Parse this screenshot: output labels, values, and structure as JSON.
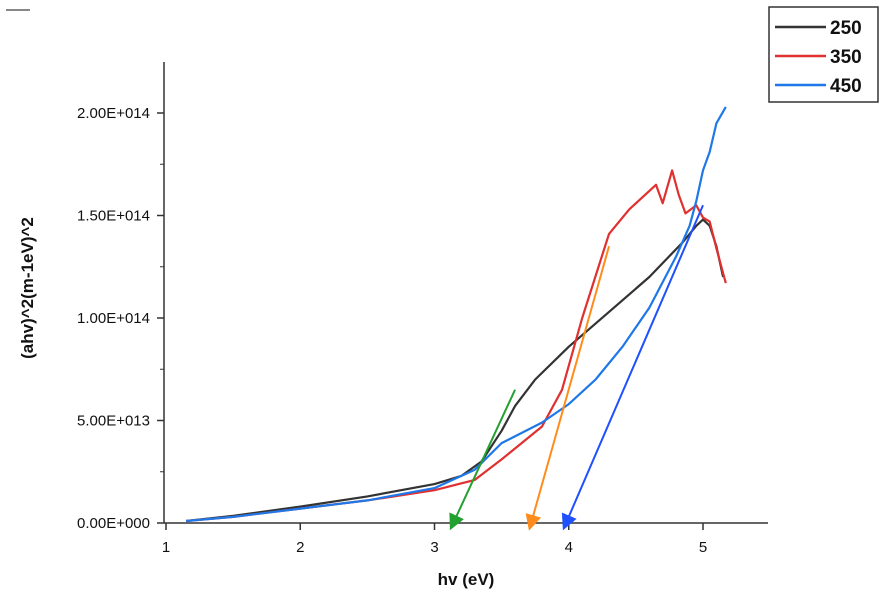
{
  "chart_data": {
    "type": "line",
    "title": "",
    "xlabel": "hv (eV)",
    "ylabel": "(ahv)^2(m-1eV)^2",
    "xlim": [
      1,
      5.45
    ],
    "ylim": [
      0,
      225000000000000.0
    ],
    "x_ticks": [
      1,
      2,
      3,
      4,
      5
    ],
    "x_tick_labels": [
      "1",
      "2",
      "3",
      "4",
      "5"
    ],
    "y_ticks": [
      0,
      50000000000000.0,
      100000000000000.0,
      150000000000000.0,
      200000000000000.0
    ],
    "y_tick_labels": [
      "0.00E+000",
      "5.00E+013",
      "1.00E+014",
      "1.50E+014",
      "2.00E+014"
    ],
    "grid": false,
    "legend_position": "top-right",
    "series": [
      {
        "name": "250",
        "color": "#333333",
        "x": [
          1.15,
          1.5,
          2.0,
          2.5,
          3.0,
          3.2,
          3.35,
          3.5,
          3.6,
          3.75,
          4.0,
          4.3,
          4.6,
          4.85,
          4.95,
          5.0,
          5.05,
          5.1,
          5.15
        ],
        "y": [
          1000000000000.0,
          3500000000000.0,
          8000000000000.0,
          13000000000000.0,
          19000000000000.0,
          23000000000000.0,
          30000000000000.0,
          45000000000000.0,
          57000000000000.0,
          70000000000000.0,
          86000000000000.0,
          103000000000000.0,
          120000000000000.0,
          137000000000000.0,
          145000000000000.0,
          148000000000000.0,
          145000000000000.0,
          135000000000000.0,
          120000000000000.0
        ]
      },
      {
        "name": "350",
        "color": "#e03030",
        "x": [
          1.15,
          1.5,
          2.0,
          2.5,
          3.0,
          3.3,
          3.5,
          3.8,
          3.95,
          4.1,
          4.3,
          4.45,
          4.65,
          4.7,
          4.77,
          4.82,
          4.87,
          4.95,
          5.0,
          5.05,
          5.1,
          5.17
        ],
        "y": [
          1000000000000.0,
          3000000000000.0,
          7000000000000.0,
          11000000000000.0,
          16000000000000.0,
          21000000000000.0,
          31000000000000.0,
          47000000000000.0,
          65000000000000.0,
          100000000000000.0,
          141000000000000.0,
          153000000000000.0,
          165000000000000.0,
          156000000000000.0,
          172000000000000.0,
          160000000000000.0,
          151000000000000.0,
          155000000000000.0,
          149000000000000.0,
          147000000000000.0,
          134000000000000.0,
          117000000000000.0
        ]
      },
      {
        "name": "450",
        "color": "#1e78e8",
        "x": [
          1.15,
          1.5,
          2.0,
          2.5,
          3.0,
          3.3,
          3.5,
          3.8,
          4.0,
          4.2,
          4.4,
          4.6,
          4.8,
          4.9,
          4.95,
          5.0,
          5.05,
          5.1,
          5.17
        ],
        "y": [
          1000000000000.0,
          3000000000000.0,
          7000000000000.0,
          11000000000000.0,
          17000000000000.0,
          26000000000000.0,
          39000000000000.0,
          49000000000000.0,
          58000000000000.0,
          70000000000000.0,
          86000000000000.0,
          105000000000000.0,
          130000000000000.0,
          145000000000000.0,
          157000000000000.0,
          172000000000000.0,
          181000000000000.0,
          195000000000000.0,
          203000000000000.0
        ]
      }
    ],
    "tangent_lines": [
      {
        "color": "#22a030",
        "x": [
          3.6,
          3.14
        ],
        "y": [
          65000000000000.0,
          0
        ]
      },
      {
        "color": "#ff8c1a",
        "x": [
          4.3,
          3.72
        ],
        "y": [
          135000000000000.0,
          0
        ]
      },
      {
        "color": "#1e50ff",
        "x": [
          5.0,
          3.98
        ],
        "y": [
          155000000000000.0,
          0
        ]
      }
    ]
  }
}
